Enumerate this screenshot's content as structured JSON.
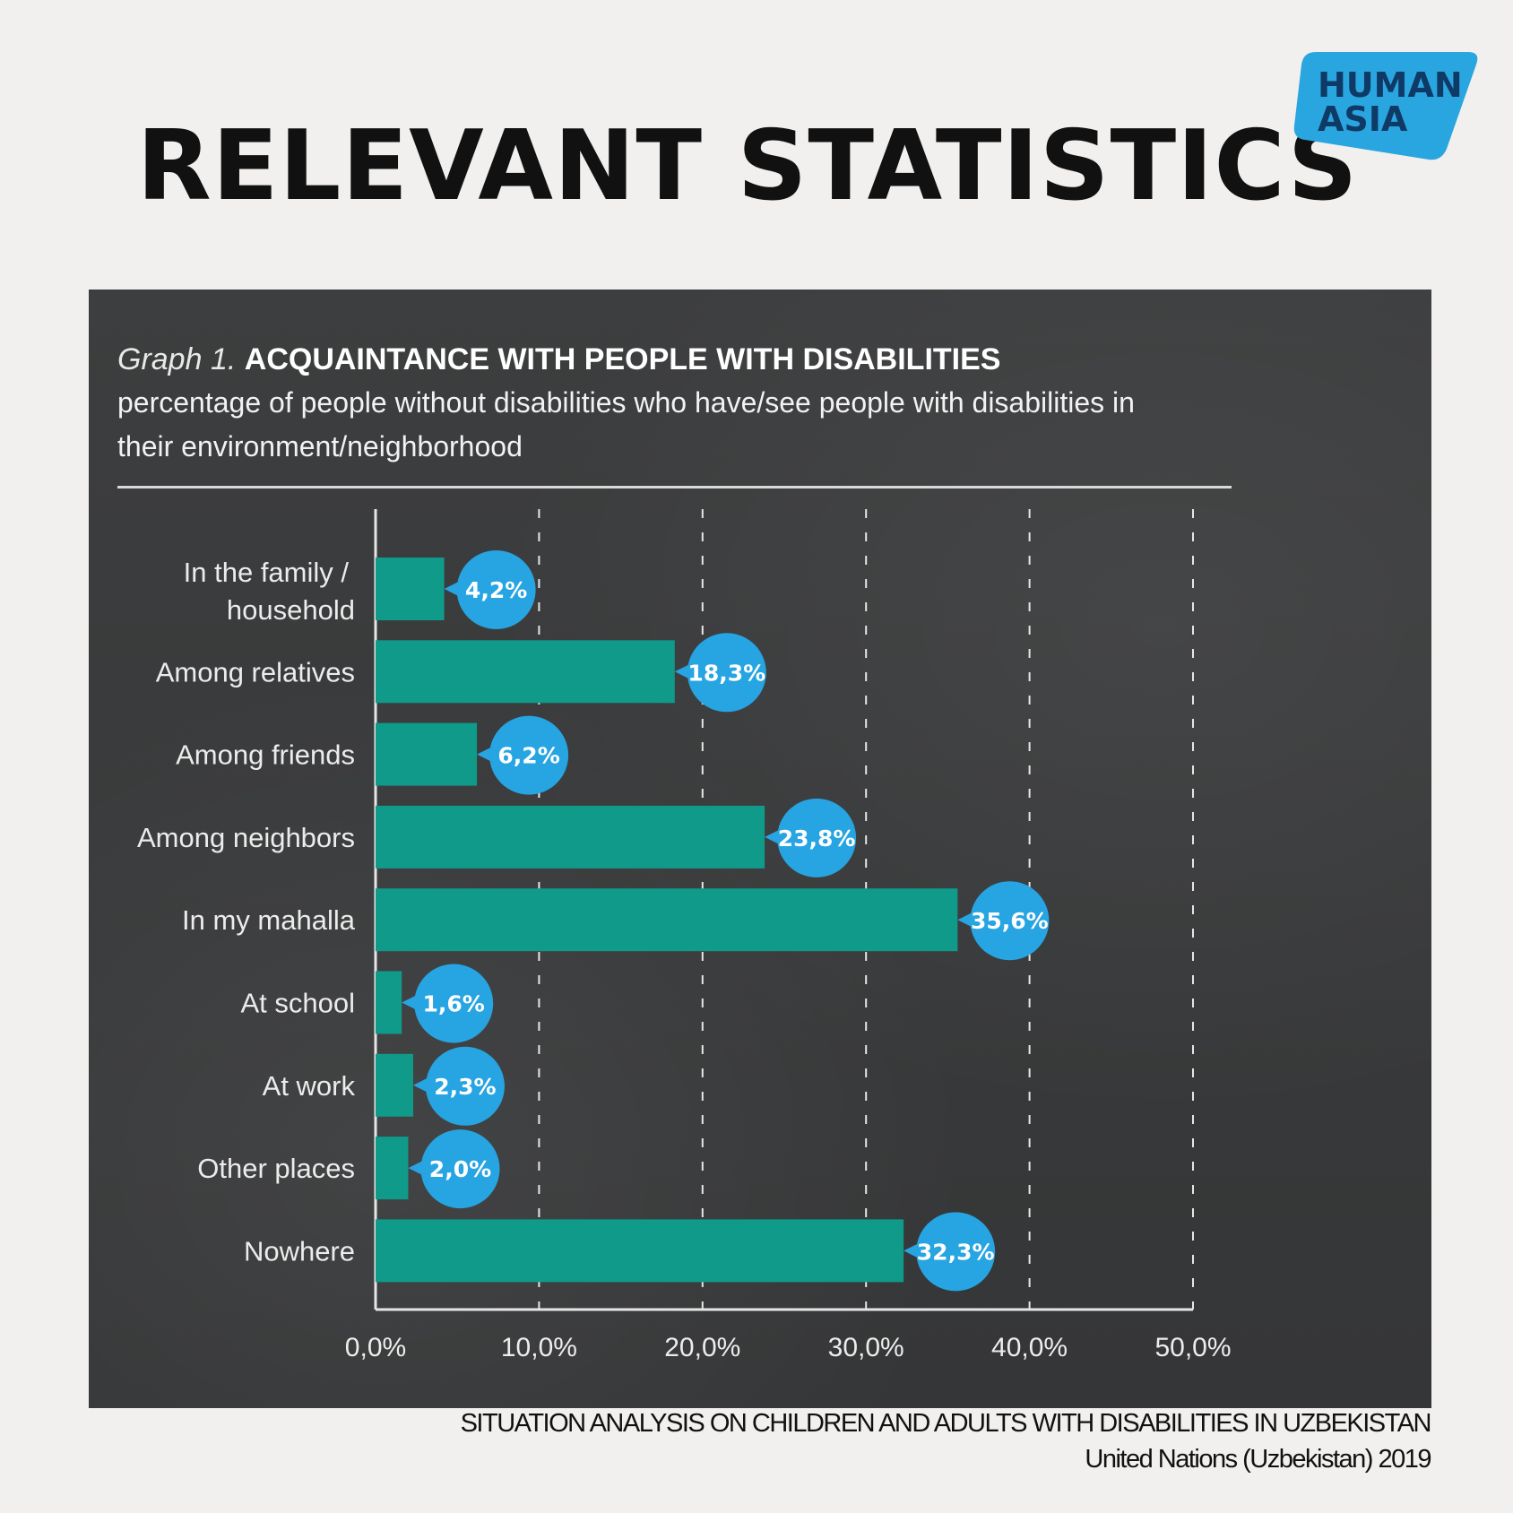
{
  "header": {
    "title": "RELEVANT STATISTICS",
    "logo_line1": "HUMAN",
    "logo_line2": "ASIA",
    "logo_color": "#29a6e0"
  },
  "graph": {
    "label": "Graph 1.",
    "title": "ACQUAINTANCE WITH PEOPLE WITH DISABILITIES",
    "subtitle": "percentage of people without disabilities who have/see people with disabilities in their environment/neighborhood"
  },
  "chart_data": {
    "type": "bar",
    "orientation": "horizontal",
    "title": "ACQUAINTANCE WITH PEOPLE WITH DISABILITIES",
    "categories": [
      "In the family / household",
      "Among relatives",
      "Among friends",
      "Among neighbors",
      "In my mahalla",
      "At school",
      "At work",
      "Other places",
      "Nowhere"
    ],
    "values": [
      4.2,
      18.3,
      6.2,
      23.8,
      35.6,
      1.6,
      2.3,
      2.0,
      32.3
    ],
    "value_labels": [
      "4,2%",
      "18,3%",
      "6,2%",
      "23,8%",
      "35,6%",
      "1,6%",
      "2,3%",
      "2,0%",
      "32,3%"
    ],
    "xlim": [
      0,
      50
    ],
    "x_ticks": [
      "0,0%",
      "10,0%",
      "20,0%",
      "30,0%",
      "40,0%",
      "50,0%"
    ],
    "grid": "vertical dashed",
    "bar_color": "#0f9a8a",
    "label_bubble_color": "#27a4e2"
  },
  "source": {
    "title": "SITUATION ANALYSIS ON CHILDREN AND ADULTS WITH DISABILITIES IN UZBEKISTAN",
    "org": "United Nations (Uzbekistan) 2019"
  }
}
